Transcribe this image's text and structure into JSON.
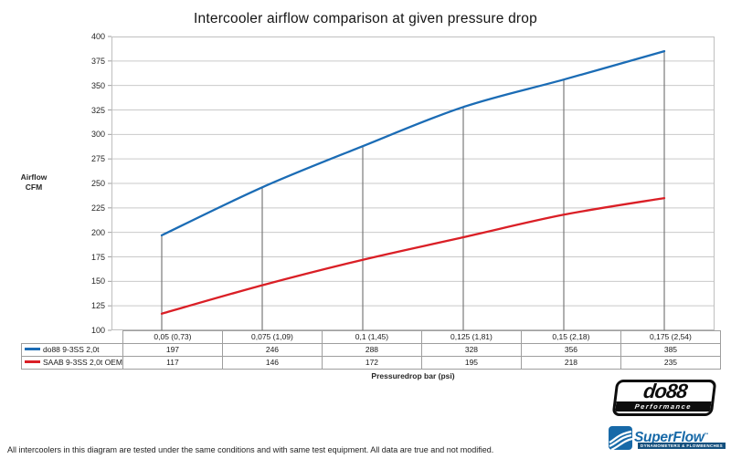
{
  "title": "Intercooler airflow comparison at given pressure drop",
  "footer": "All intercoolers in this diagram are tested under the same conditions and with same test equipment. All data are true and not modified.",
  "chart_data": {
    "type": "line",
    "title": "Intercooler airflow comparison at given pressure drop",
    "xlabel": "Pressuredrop bar (psi)",
    "ylabel": "Airflow CFM",
    "ylabel_lines": [
      "Airflow",
      "CFM"
    ],
    "categories": [
      "0,05 (0,73)",
      "0,075 (1,09)",
      "0,1 (1,45)",
      "0,125 (1,81)",
      "0,15 (2,18)",
      "0,175 (2,54)"
    ],
    "series": [
      {
        "name": "do88 9-3SS 2,0t",
        "color": "#1b6cb5",
        "values": [
          197,
          246,
          288,
          328,
          356,
          385
        ]
      },
      {
        "name": "SAAB 9-3SS 2,0t OEM",
        "color": "#da1f26",
        "values": [
          117,
          146,
          172,
          195,
          218,
          235
        ]
      }
    ],
    "ylim": [
      100,
      400
    ],
    "yticks": [
      100,
      125,
      150,
      175,
      200,
      225,
      250,
      275,
      300,
      325,
      350,
      375,
      400
    ],
    "grid": "horizontal",
    "legend_position": "table-left",
    "has_category_droplines": true,
    "smooth_lines": true
  },
  "colors": {
    "grid": "#c9c9c9",
    "axis_border": "#bfbfbf",
    "tick": "#9e9e9e",
    "dropline": "#7a7a7a",
    "table_border": "#9e9e9e"
  },
  "logos": {
    "do88": {
      "name": "do88",
      "tagline": "Performance"
    },
    "superflow": {
      "name": "SuperFlow",
      "trademark": "™",
      "tagline": "DYNAMOMETERS & FLOWBENCHES"
    }
  }
}
